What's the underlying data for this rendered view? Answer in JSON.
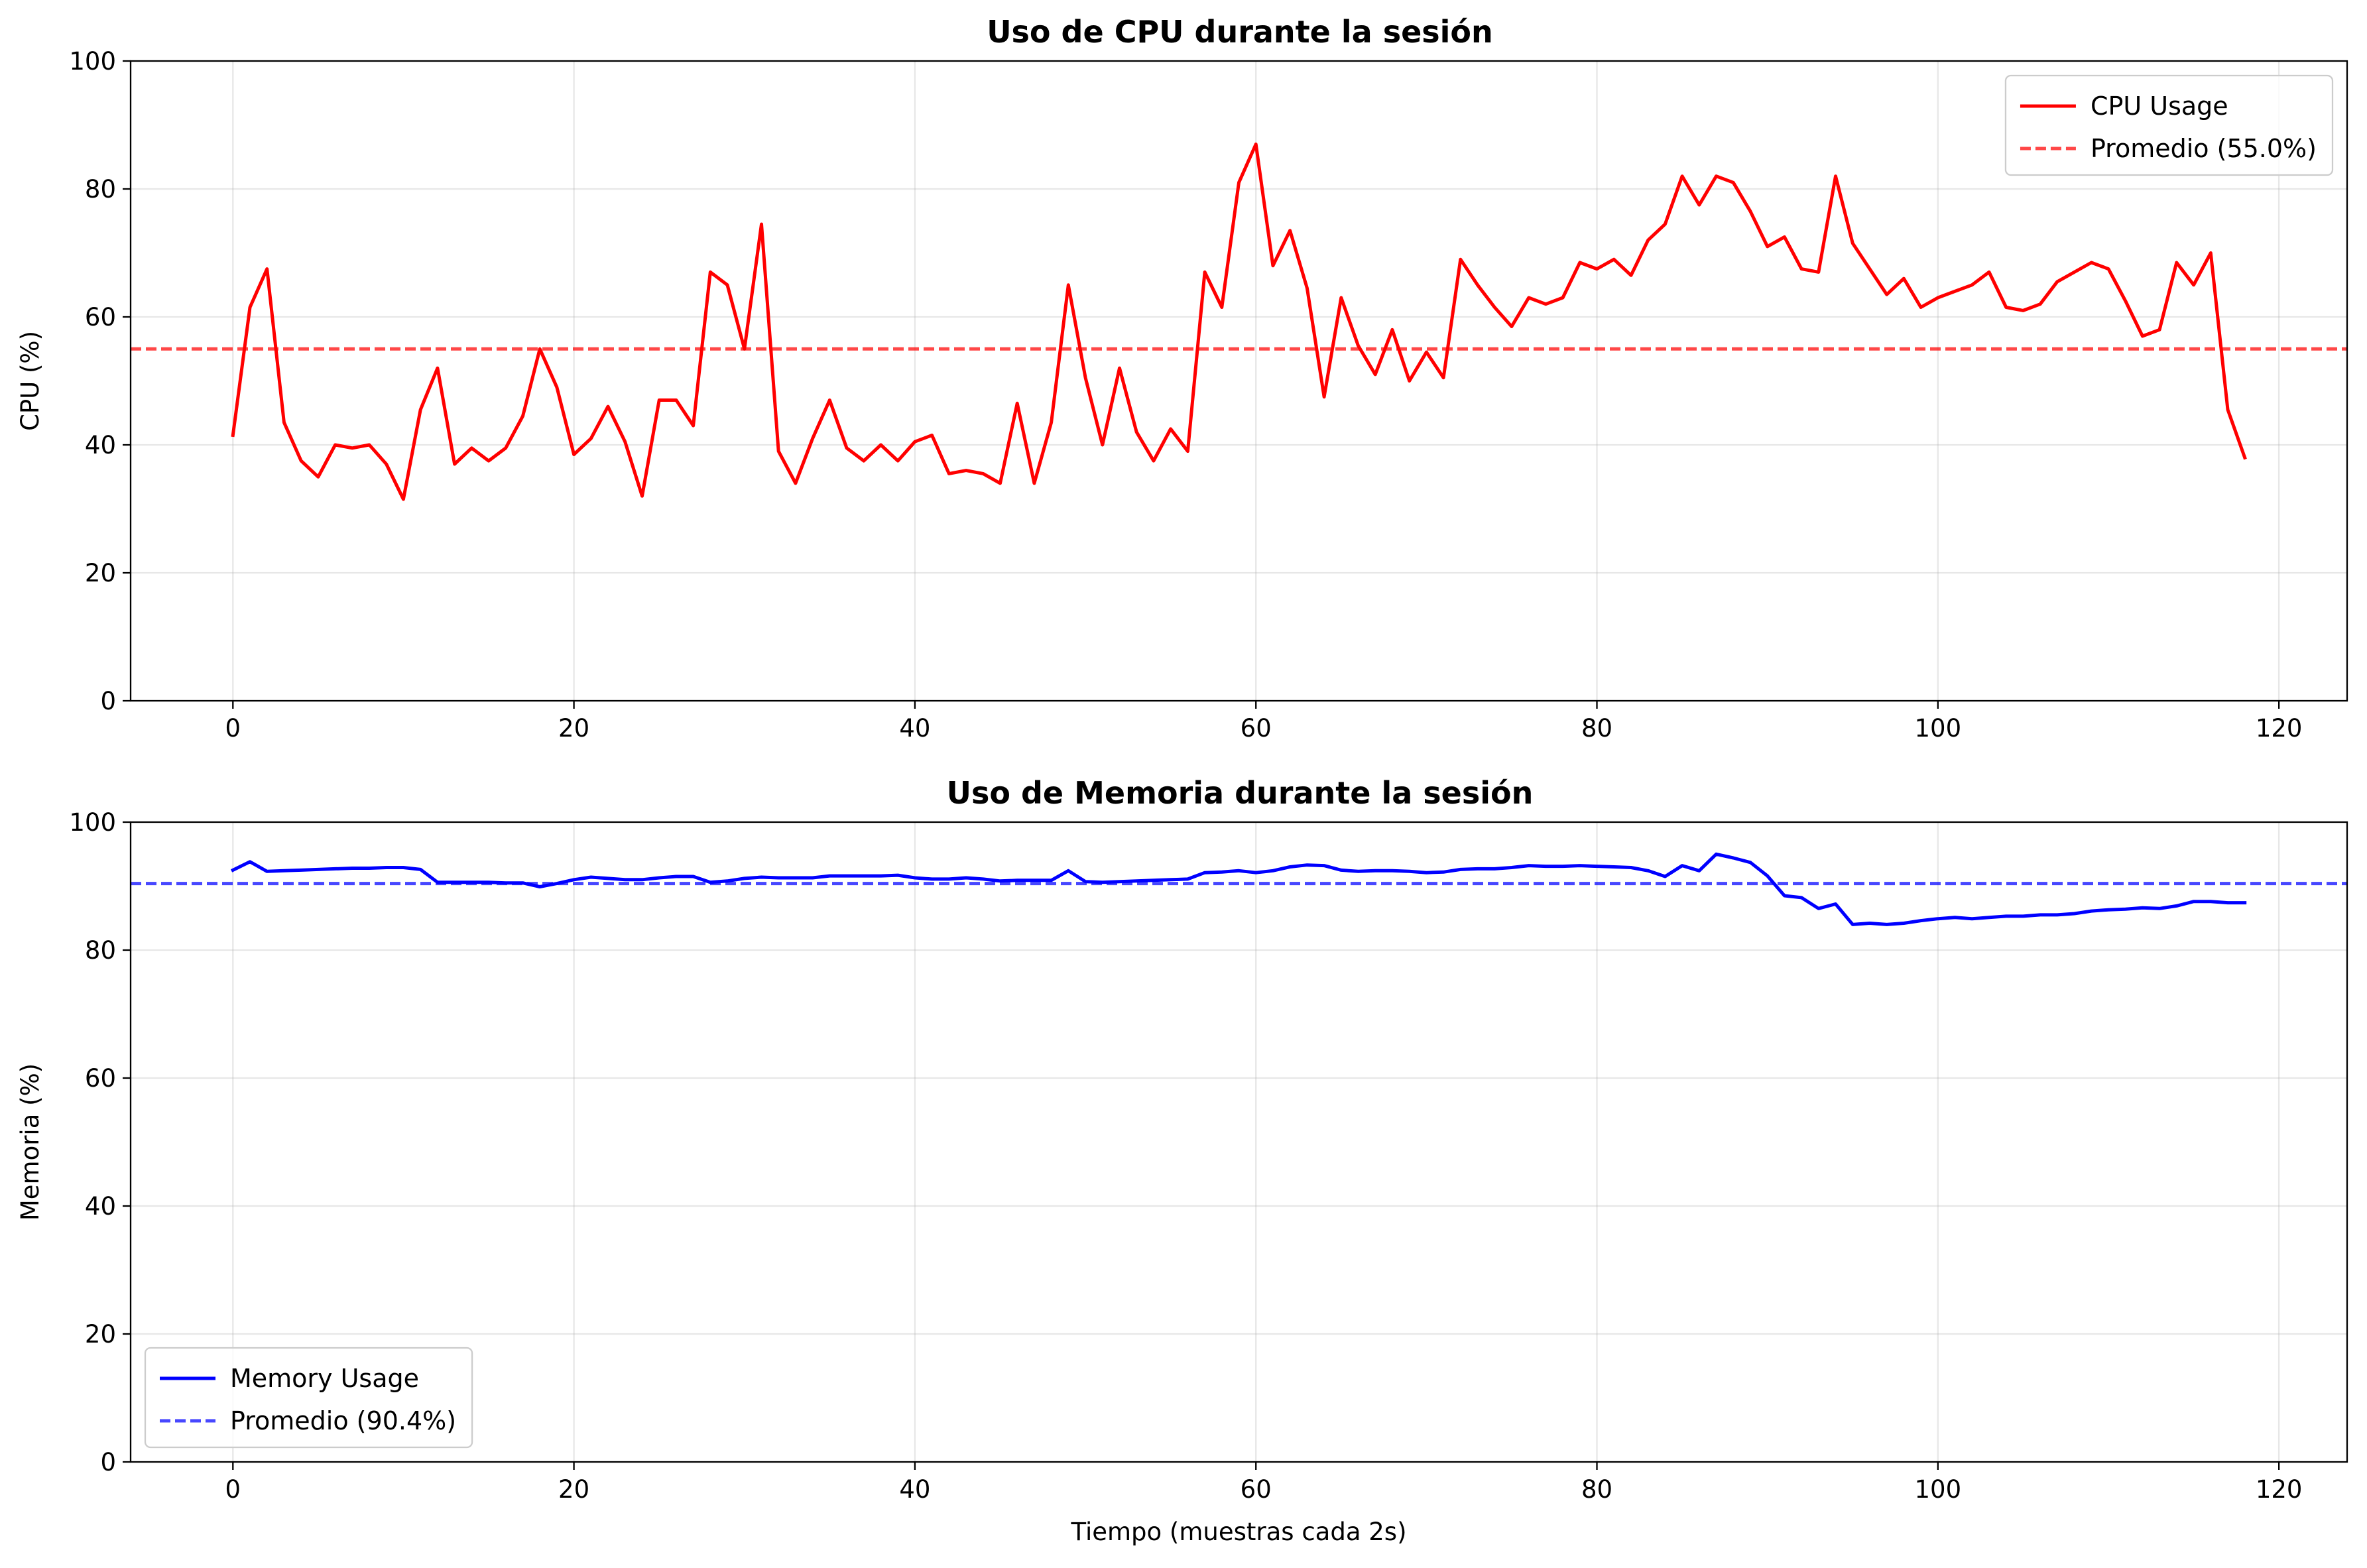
{
  "chart_data": [
    {
      "type": "line",
      "title": "Uso de CPU durante la sesión",
      "xlabel": "",
      "ylabel": "CPU (%)",
      "xlim": [
        -6,
        124
      ],
      "ylim": [
        0,
        100
      ],
      "xticks": [
        "0",
        "20",
        "40",
        "60",
        "80",
        "100",
        "120"
      ],
      "yticks": [
        "0",
        "20",
        "40",
        "60",
        "80",
        "100"
      ],
      "grid": true,
      "legend_position": "top-right",
      "series": [
        {
          "name": "CPU Usage",
          "color": "#ff0000",
          "style": "solid",
          "x_start": 0,
          "values": [
            41.5,
            61.5,
            67.5,
            43.5,
            37.5,
            35,
            40,
            39.5,
            40,
            37,
            31.5,
            45.5,
            52,
            37,
            39.5,
            37.5,
            39.5,
            44.5,
            55,
            49,
            38.5,
            41,
            46,
            40.5,
            32,
            47,
            47,
            43,
            67,
            65,
            55,
            74.5,
            39,
            34,
            41,
            47,
            39.5,
            37.5,
            40,
            37.5,
            40.5,
            41.5,
            35.5,
            36,
            35.5,
            34,
            46.5,
            34,
            43.5,
            65,
            50.5,
            40,
            52,
            42,
            37.5,
            42.5,
            39,
            67,
            61.5,
            81,
            87,
            68,
            73.5,
            64.5,
            47.5,
            63,
            55.5,
            51,
            58,
            50,
            54.5,
            50.5,
            69,
            65,
            61.5,
            58.5,
            63,
            62,
            63,
            68.5,
            67.5,
            69,
            66.5,
            72,
            74.5,
            82,
            77.5,
            82,
            81,
            76.5,
            71,
            72.5,
            67.5,
            67,
            82,
            71.5,
            67.5,
            63.5,
            66,
            61.5,
            63,
            64,
            65,
            67,
            61.5,
            61,
            62,
            65.5,
            67,
            68.5,
            67.5,
            62.5,
            57,
            58,
            68.5,
            65,
            70,
            45.5,
            38
          ]
        },
        {
          "name": "Promedio (55.0%)",
          "color": "#ff0000",
          "style": "dashed",
          "constant": 55.0
        }
      ]
    },
    {
      "type": "line",
      "title": "Uso de Memoria durante la sesión",
      "xlabel": "Tiempo (muestras cada 2s)",
      "ylabel": "Memoria (%)",
      "xlim": [
        -6,
        124
      ],
      "ylim": [
        0,
        100
      ],
      "xticks": [
        "0",
        "20",
        "40",
        "60",
        "80",
        "100",
        "120"
      ],
      "yticks": [
        "0",
        "20",
        "40",
        "60",
        "80",
        "100"
      ],
      "grid": true,
      "legend_position": "bottom-left",
      "series": [
        {
          "name": "Memory Usage",
          "color": "#0000ff",
          "style": "solid",
          "x_start": 0,
          "values": [
            92.5,
            93.8,
            92.3,
            92.4,
            92.5,
            92.6,
            92.7,
            92.8,
            92.8,
            92.9,
            92.9,
            92.6,
            90.6,
            90.6,
            90.6,
            90.6,
            90.5,
            90.5,
            89.9,
            90.4,
            91,
            91.4,
            91.2,
            91,
            91,
            91.3,
            91.5,
            91.5,
            90.6,
            90.8,
            91.2,
            91.4,
            91.3,
            91.3,
            91.3,
            91.6,
            91.6,
            91.6,
            91.6,
            91.7,
            91.3,
            91.1,
            91.1,
            91.3,
            91.1,
            90.8,
            90.9,
            90.9,
            90.9,
            92.4,
            90.7,
            90.6,
            90.7,
            90.8,
            90.9,
            91,
            91.1,
            92.1,
            92.2,
            92.4,
            92.1,
            92.4,
            93,
            93.3,
            93.2,
            92.5,
            92.3,
            92.4,
            92.4,
            92.3,
            92.1,
            92.2,
            92.6,
            92.7,
            92.7,
            92.9,
            93.2,
            93.1,
            93.1,
            93.2,
            93.1,
            93,
            92.9,
            92.4,
            91.5,
            93.2,
            92.4,
            95,
            94.4,
            93.7,
            91.6,
            88.5,
            88.2,
            86.5,
            87.2,
            84,
            84.2,
            84,
            84.2,
            84.6,
            84.9,
            85.1,
            84.9,
            85.1,
            85.3,
            85.3,
            85.5,
            85.5,
            85.7,
            86.1,
            86.3,
            86.4,
            86.6,
            86.5,
            86.9,
            87.6,
            87.6,
            87.4,
            87.4
          ]
        },
        {
          "name": "Promedio (90.4%)",
          "color": "#0000ff",
          "style": "dashed",
          "constant": 90.4
        }
      ]
    }
  ]
}
